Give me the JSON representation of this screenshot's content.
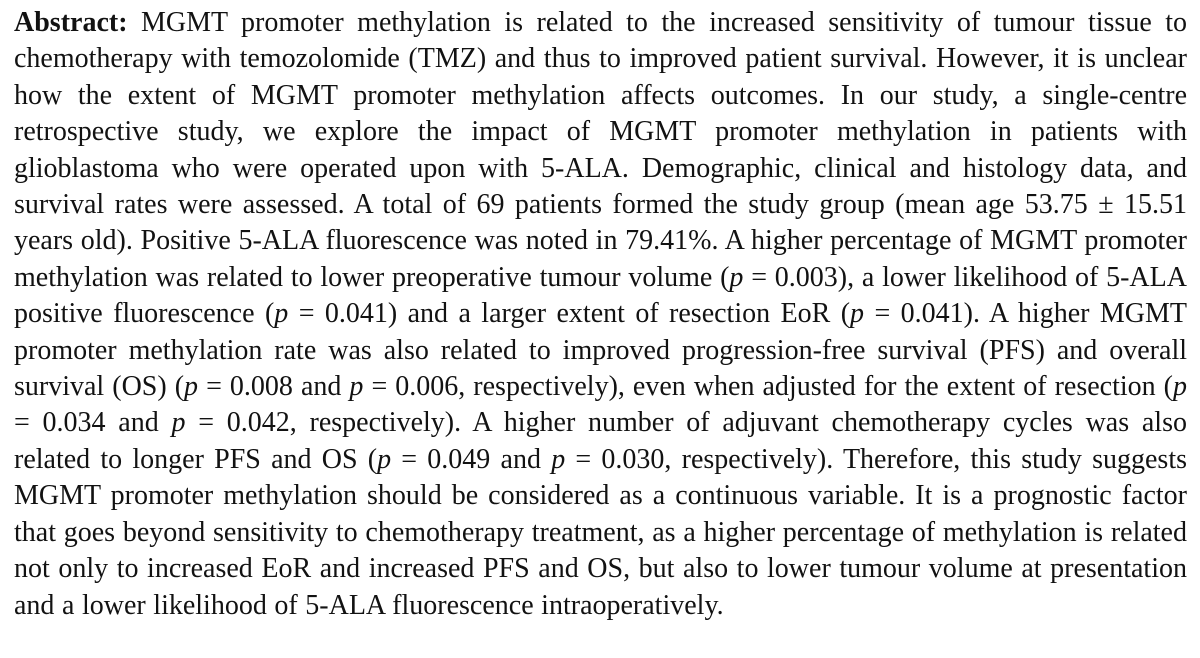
{
  "page": {
    "background": "#ffffff",
    "text_color": "#121212"
  },
  "abstract": {
    "runs": [
      {
        "style": "bold",
        "text": "Abstract: "
      },
      {
        "style": "normal",
        "text": "MGMT promoter methylation is related to the increased sensitivity of tumour tissue to chemotherapy with temozolomide (TMZ) and thus to improved patient survival. However, it is unclear how the extent of MGMT promoter methylation affects outcomes. In our study, a single-centre retrospective study, we explore the impact of MGMT promoter methylation in patients with glioblastoma who were operated upon with 5-ALA. Demographic, clinical and histology data, and survival rates were assessed. A total of 69 patients formed the study group (mean age 53.75 ± 15.51 years old). Positive 5-ALA fluorescence was noted in 79.41%. A higher percentage of MGMT promoter methylation was related to lower preoperative tumour volume ("
      },
      {
        "style": "italic",
        "text": "p"
      },
      {
        "style": "normal",
        "text": " = 0.003), a lower likelihood of 5-ALA positive fluorescence ("
      },
      {
        "style": "italic",
        "text": "p"
      },
      {
        "style": "normal",
        "text": " = 0.041) and a larger extent of resection EoR ("
      },
      {
        "style": "italic",
        "text": "p"
      },
      {
        "style": "normal",
        "text": " = 0.041). A higher MGMT promoter methylation rate was also related to improved progression-free survival (PFS) and overall survival (OS) ("
      },
      {
        "style": "italic",
        "text": "p"
      },
      {
        "style": "normal",
        "text": " = 0.008 and "
      },
      {
        "style": "italic",
        "text": "p"
      },
      {
        "style": "normal",
        "text": " = 0.006, respectively), even when adjusted for the extent of resection ("
      },
      {
        "style": "italic",
        "text": "p"
      },
      {
        "style": "normal",
        "text": " = 0.034 and "
      },
      {
        "style": "italic",
        "text": "p"
      },
      {
        "style": "normal",
        "text": " = 0.042, respectively). A higher number of adjuvant chemotherapy cycles was also related to longer PFS and OS ("
      },
      {
        "style": "italic",
        "text": "p"
      },
      {
        "style": "normal",
        "text": " = 0.049 and "
      },
      {
        "style": "italic",
        "text": "p"
      },
      {
        "style": "normal",
        "text": " = 0.030, respectively). Therefore, this study suggests MGMT promoter methylation should be considered as a continuous variable. It is a prognostic factor that goes beyond sensitivity to chemotherapy treatment, as a higher percentage of methylation is related not only to increased EoR and increased PFS and OS, but also to lower tumour volume at presentation and a lower likelihood of 5-ALA fluorescence intraoperatively."
      }
    ]
  }
}
